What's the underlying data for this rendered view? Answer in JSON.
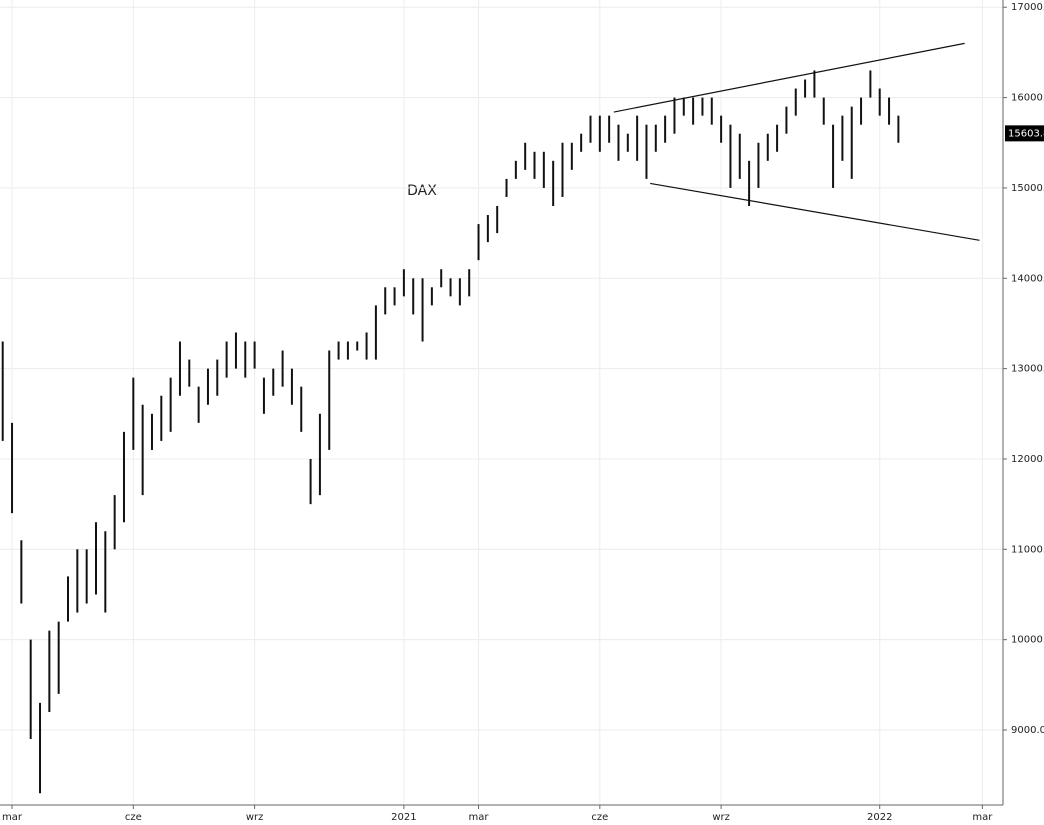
{
  "chart_data": {
    "type": "ohlc",
    "title": "DAX",
    "last_price": 15603.8,
    "ylim": [
      8170,
      17080
    ],
    "yticks": [
      {
        "value": 9000,
        "label": "9000.0"
      },
      {
        "value": 10000,
        "label": "10000."
      },
      {
        "value": 11000,
        "label": "11000."
      },
      {
        "value": 12000,
        "label": "12000."
      },
      {
        "value": 13000,
        "label": "13000."
      },
      {
        "value": 14000,
        "label": "14000."
      },
      {
        "value": 15000,
        "label": "15000."
      },
      {
        "value": 16000,
        "label": "16000."
      },
      {
        "value": 17000,
        "label": "17000."
      }
    ],
    "grid": true,
    "color": "#111111",
    "categories": [
      null,
      "mar",
      null,
      null,
      null,
      null,
      null,
      null,
      null,
      null,
      null,
      null,
      null,
      null,
      "cze",
      null,
      null,
      null,
      null,
      null,
      null,
      null,
      null,
      null,
      null,
      null,
      null,
      "wrz",
      null,
      null,
      null,
      null,
      null,
      null,
      null,
      null,
      null,
      null,
      null,
      null,
      null,
      null,
      null,
      "2021",
      null,
      null,
      null,
      null,
      null,
      null,
      null,
      "mar",
      null,
      null,
      null,
      null,
      null,
      null,
      null,
      null,
      null,
      null,
      null,
      null,
      "cze",
      null,
      null,
      null,
      null,
      null,
      null,
      null,
      null,
      null,
      null,
      null,
      null,
      "wrz",
      null,
      null,
      null,
      null,
      null,
      null,
      null,
      null,
      null,
      null,
      null,
      null,
      null,
      null,
      null,
      null,
      "2022",
      null,
      null,
      null,
      null,
      null,
      null,
      null,
      null,
      null,
      null,
      "mar"
    ],
    "series": [
      {
        "name": "high",
        "values": [
          13300,
          12400,
          11100,
          10000,
          9300,
          10100,
          10200,
          10700,
          11000,
          11000,
          11300,
          11200,
          11600,
          12300,
          12900,
          12600,
          12500,
          12700,
          12900,
          13300,
          13100,
          12800,
          13000,
          13100,
          13300,
          13400,
          13300,
          13300,
          12900,
          13000,
          13200,
          13000,
          12800,
          12000,
          12500,
          13200,
          13300,
          13300,
          13300,
          13400,
          13700,
          13900,
          13900,
          14100,
          14000,
          14000,
          13900,
          14100,
          14000,
          14000,
          14100,
          14600,
          14700,
          14800,
          15100,
          15300,
          15500,
          15400,
          15400,
          15300,
          15500,
          15500,
          15600,
          15800,
          15800,
          15800,
          15700,
          15600,
          15800,
          15700,
          15700,
          15800,
          16000,
          16000,
          16000,
          16000,
          16000,
          15800,
          15700,
          15600,
          15300,
          15500,
          15600,
          15700,
          15900,
          16100,
          16200,
          16300,
          16000,
          15700,
          15800,
          15900,
          16000,
          16300,
          16100,
          16000,
          15800,
          null,
          null,
          null,
          null,
          null,
          null,
          null,
          null,
          null
        ]
      },
      {
        "name": "low",
        "values": [
          12200,
          11400,
          10400,
          8900,
          8300,
          9200,
          9400,
          10200,
          10300,
          10400,
          10500,
          10300,
          11000,
          11300,
          12100,
          11600,
          12100,
          12200,
          12300,
          12700,
          12800,
          12400,
          12600,
          12700,
          12900,
          13000,
          12900,
          13000,
          12500,
          12700,
          12800,
          12600,
          12300,
          11500,
          11600,
          12100,
          13100,
          13100,
          13200,
          13100,
          13100,
          13600,
          13700,
          13800,
          13600,
          13300,
          13700,
          13900,
          13800,
          13700,
          13800,
          14200,
          14400,
          14500,
          14900,
          15100,
          15200,
          15100,
          15000,
          14800,
          14900,
          15200,
          15400,
          15500,
          15400,
          15500,
          15300,
          15400,
          15300,
          15100,
          15400,
          15500,
          15600,
          15800,
          15700,
          15800,
          15700,
          15500,
          15000,
          15100,
          14800,
          15000,
          15300,
          15400,
          15600,
          15800,
          16000,
          16000,
          15700,
          15000,
          15300,
          15100,
          15700,
          16000,
          15800,
          15700,
          15500,
          null,
          null,
          null,
          null,
          null,
          null,
          null,
          null,
          null
        ]
      }
    ],
    "trendlines": [
      {
        "x": [
          65.5,
          103.1
        ],
        "y": [
          15840,
          16600
        ]
      },
      {
        "x": [
          69.4,
          104.7
        ],
        "y": [
          15050,
          14420
        ]
      }
    ]
  }
}
